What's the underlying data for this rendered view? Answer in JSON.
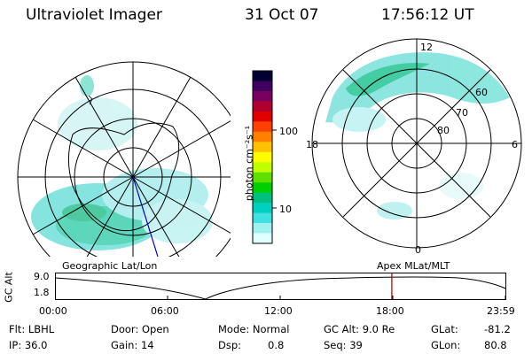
{
  "header": {
    "title": "Ultraviolet Imager",
    "date": "31 Oct 07",
    "time": "17:56:12 UT"
  },
  "geo_panel": {
    "label": "Geographic Lat/Lon"
  },
  "mag_panel": {
    "label": "Apex  MLat/MLT",
    "mlt_labels": [
      "12",
      "18",
      "6",
      "0"
    ],
    "lat_labels": [
      "60",
      "70",
      "80"
    ]
  },
  "colorbar": {
    "unit_label": "photon cm⁻²s⁻¹",
    "ticks": [
      "100",
      "10"
    ],
    "colors": [
      "#000033",
      "#400060",
      "#7a0060",
      "#b00030",
      "#e00000",
      "#ff4000",
      "#ff8000",
      "#ffc000",
      "#ffff00",
      "#c0ff00",
      "#60e000",
      "#00d000",
      "#00c080",
      "#00d0c0",
      "#40e0e0",
      "#a0f0f0",
      "#e0ffff"
    ]
  },
  "timeline": {
    "y_label": "GC Alt",
    "y_ticks": [
      "9.0",
      "1.8"
    ],
    "x_ticks": [
      "00:00",
      "06:00",
      "12:00",
      "18:00",
      "23:59"
    ],
    "current_time": "17:56",
    "marker_color": "#cc0000"
  },
  "info": {
    "flt": "Flt: LBHL",
    "ip": "IP: 36.0",
    "door": "Door: Open",
    "gain": "Gain: 14",
    "mode": "Mode: Normal",
    "dsp_label": "Dsp:",
    "dsp_value": "0.8",
    "gc_alt": "GC Alt: 9.0 Re",
    "seq": "Seq: 39",
    "glat_label": "GLat:",
    "glat_value": "-81.2",
    "glon_label": "GLon:",
    "glon_value": "80.8"
  }
}
